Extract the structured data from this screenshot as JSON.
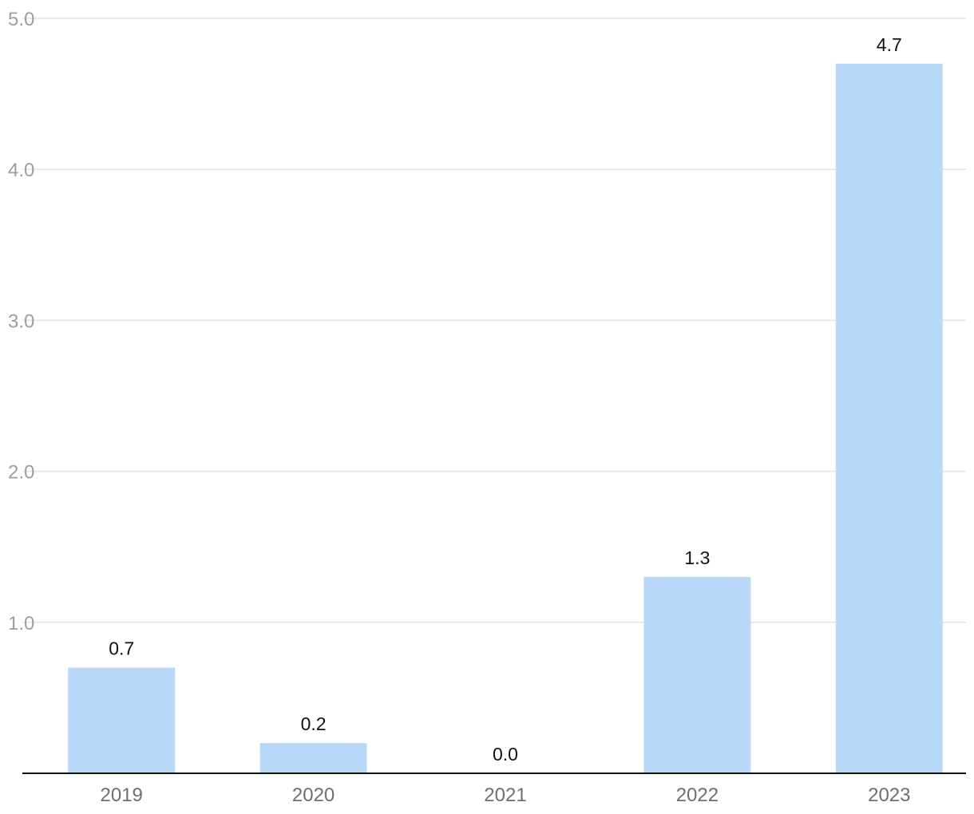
{
  "chart_data": {
    "type": "bar",
    "categories": [
      "2019",
      "2020",
      "2021",
      "2022",
      "2023"
    ],
    "values": [
      0.7,
      0.2,
      0.0,
      1.3,
      4.7
    ],
    "value_labels": [
      "0.7",
      "0.2",
      "0.0",
      "1.3",
      "4.7"
    ],
    "y_ticks": [
      1.0,
      2.0,
      3.0,
      4.0,
      5.0
    ],
    "y_tick_labels": [
      "1.0",
      "2.0",
      "3.0",
      "4.0",
      "5.0"
    ],
    "ylim": [
      0,
      5
    ],
    "title": "",
    "xlabel": "",
    "ylabel": "",
    "grid": true,
    "legend": "none",
    "colors": {
      "bar": "#b8d8f7",
      "grid": "#e3e3e3",
      "axis": "#111111",
      "y_tick_text": "#9e9e9e",
      "x_tick_text": "#6f6f6f",
      "data_label_text": "#111111"
    }
  }
}
